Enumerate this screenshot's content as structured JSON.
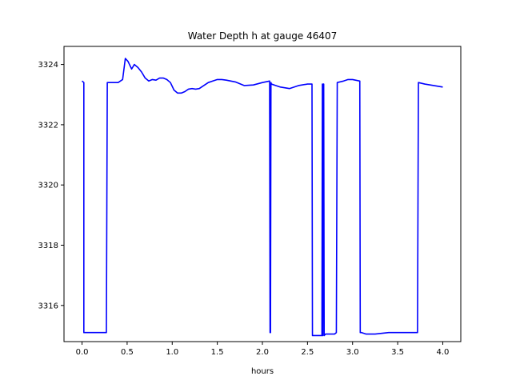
{
  "chart_data": {
    "type": "line",
    "title": "Water Depth h at gauge 46407",
    "xlabel": "hours",
    "ylabel": "",
    "xlim": [
      -0.2,
      4.2
    ],
    "ylim": [
      3314.8,
      3324.6
    ],
    "x_ticks": [
      0.0,
      0.5,
      1.0,
      1.5,
      2.0,
      2.5,
      3.0,
      3.5,
      4.0
    ],
    "x_tick_labels": [
      "0.0",
      "0.5",
      "1.0",
      "1.5",
      "2.0",
      "2.5",
      "3.0",
      "3.5",
      "4.0"
    ],
    "y_ticks": [
      3316,
      3318,
      3320,
      3322,
      3324
    ],
    "y_tick_labels": [
      "3316",
      "3318",
      "3320",
      "3322",
      "3324"
    ],
    "grid": false,
    "line_color": "#0000ff",
    "series": [
      {
        "x": [
          0.0,
          0.02,
          0.02,
          0.27,
          0.28,
          0.4,
          0.45,
          0.48,
          0.51,
          0.55,
          0.58,
          0.62,
          0.66,
          0.7,
          0.74,
          0.78,
          0.82,
          0.86,
          0.9,
          0.94,
          0.98,
          1.02,
          1.06,
          1.1,
          1.14,
          1.18,
          1.22,
          1.26,
          1.3,
          1.35,
          1.4,
          1.45,
          1.5,
          1.55,
          1.6,
          1.7,
          1.8,
          1.9,
          2.0,
          2.08,
          2.085,
          2.09,
          2.095,
          2.1,
          2.15,
          2.2,
          2.3,
          2.4,
          2.5,
          2.55,
          2.555,
          2.66,
          2.665,
          2.67,
          2.675,
          2.68,
          2.685,
          2.7,
          2.8,
          2.82,
          2.83,
          2.9,
          2.95,
          3.0,
          3.08,
          3.085,
          3.1,
          3.15,
          3.25,
          3.4,
          3.6,
          3.72,
          3.73,
          3.8,
          3.9,
          4.0
        ],
        "y": [
          3323.45,
          3323.4,
          3315.1,
          3315.1,
          3323.4,
          3323.4,
          3323.5,
          3324.2,
          3324.1,
          3323.85,
          3324.0,
          3323.9,
          3323.75,
          3323.55,
          3323.45,
          3323.5,
          3323.48,
          3323.55,
          3323.55,
          3323.5,
          3323.4,
          3323.15,
          3323.05,
          3323.05,
          3323.1,
          3323.18,
          3323.2,
          3323.18,
          3323.2,
          3323.3,
          3323.4,
          3323.45,
          3323.5,
          3323.5,
          3323.48,
          3323.42,
          3323.3,
          3323.32,
          3323.4,
          3323.45,
          3315.1,
          3315.1,
          3323.4,
          3323.35,
          3323.3,
          3323.25,
          3323.2,
          3323.3,
          3323.35,
          3323.35,
          3315.0,
          3315.0,
          3323.35,
          3315.0,
          3323.35,
          3323.35,
          3315.0,
          3315.05,
          3315.05,
          3315.1,
          3323.4,
          3323.45,
          3323.5,
          3323.5,
          3323.45,
          3315.1,
          3315.1,
          3315.05,
          3315.05,
          3315.1,
          3315.1,
          3315.1,
          3323.4,
          3323.35,
          3323.3,
          3323.25
        ]
      }
    ]
  }
}
